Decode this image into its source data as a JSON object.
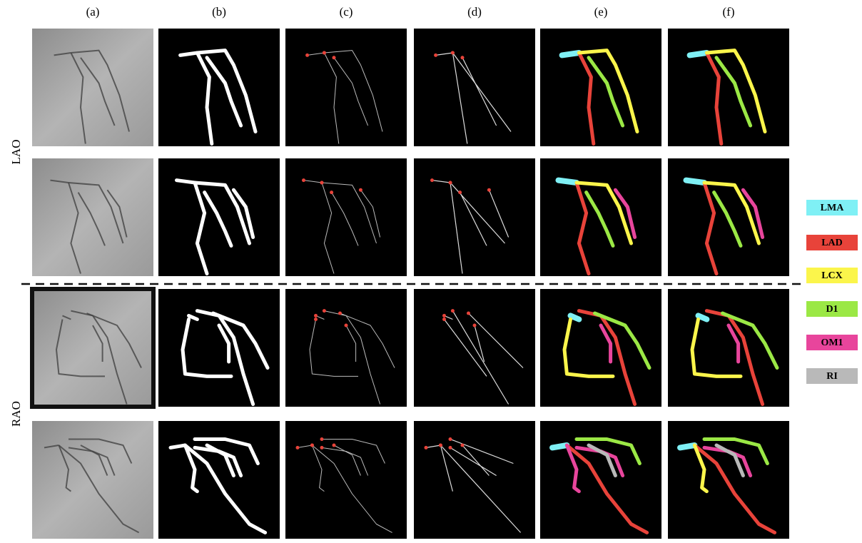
{
  "figure": {
    "columns": [
      "(a)",
      "(b)",
      "(c)",
      "(d)",
      "(e)",
      "(f)"
    ],
    "rows": [
      "LAO",
      "RAO"
    ],
    "legend": [
      {
        "label": "LMA",
        "color": "#7ff0f5"
      },
      {
        "label": "LAD",
        "color": "#e8433a"
      },
      {
        "label": "LCX",
        "color": "#fbf54b"
      },
      {
        "label": "D1",
        "color": "#9be845"
      },
      {
        "label": "OM1",
        "color": "#e8459c"
      },
      {
        "label": "RI",
        "color": "#b9b9b9"
      }
    ]
  }
}
